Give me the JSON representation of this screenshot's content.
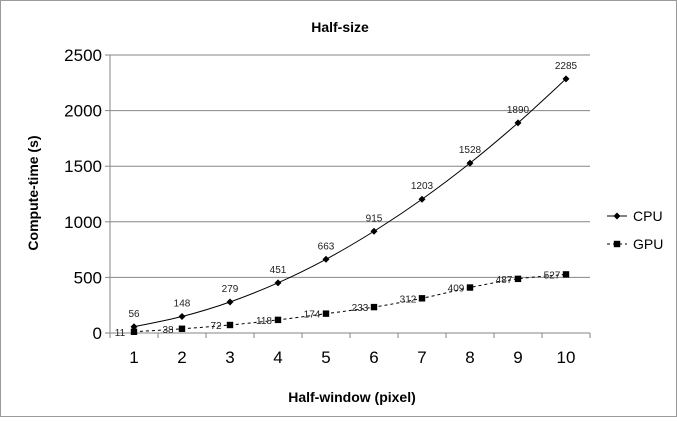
{
  "chart_data": {
    "type": "line",
    "title": "Half-size",
    "xlabel": "Half-window (pixel)",
    "ylabel": "Compute-time (s)",
    "x": [
      1,
      2,
      3,
      4,
      5,
      6,
      7,
      8,
      9,
      10
    ],
    "xticks": [
      "1",
      "2",
      "3",
      "4",
      "5",
      "6",
      "7",
      "8",
      "9",
      "10"
    ],
    "yticks": [
      "0",
      "500",
      "1000",
      "1500",
      "2000",
      "2500"
    ],
    "ylim": [
      0,
      2500
    ],
    "grid": true,
    "legend_position": "right",
    "series": [
      {
        "name": "CPU",
        "values": [
          56,
          148,
          279,
          451,
          663,
          915,
          1203,
          1528,
          1890,
          2285
        ],
        "labels": [
          "56",
          "148",
          "279",
          "451",
          "663",
          "915",
          "1203",
          "1528",
          "1890",
          "2285"
        ],
        "marker": "diamond",
        "line_style": "solid",
        "color": "#000000"
      },
      {
        "name": "GPU",
        "values": [
          11,
          38,
          72,
          118,
          174,
          233,
          312,
          409,
          487,
          527
        ],
        "labels": [
          "11",
          "38",
          "72",
          "118",
          "174",
          "233",
          "312",
          "409",
          "487",
          "527"
        ],
        "marker": "square",
        "line_style": "dashed",
        "color": "#000000"
      }
    ]
  }
}
